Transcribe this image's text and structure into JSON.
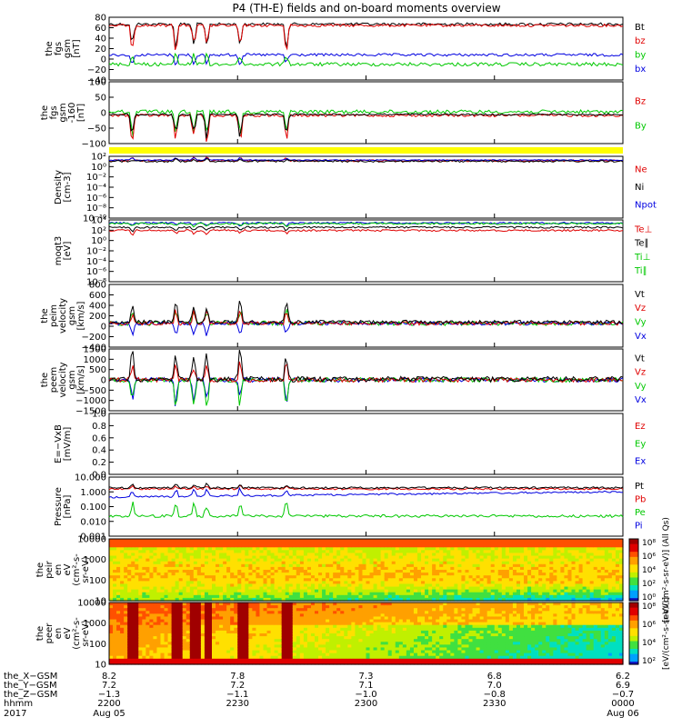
{
  "title": "P4 (TH-E) fields and on-board moments overview",
  "colors": {
    "black": "#000000",
    "red": "#e00000",
    "green": "#00c800",
    "blue": "#0000e0",
    "yellow": "#ffff00"
  },
  "panels": [
    {
      "id": "fgs",
      "ylabel": [
        "the",
        "fgs",
        "gsm",
        "[nT]"
      ],
      "ticks": [
        "80",
        "60",
        "40",
        "20",
        "0",
        "−20",
        "−40"
      ],
      "legend": [
        {
          "t": "Bt",
          "c": "black"
        },
        {
          "t": "bz",
          "c": "red"
        },
        {
          "t": "by",
          "c": "green"
        },
        {
          "t": "bx",
          "c": "blue"
        }
      ]
    },
    {
      "id": "fgs2",
      "ylabel": [
        "the",
        "fgs",
        "gsm",
        "-160",
        "[nT]"
      ],
      "ticks": [
        "100",
        "50",
        "0",
        "−50",
        "−100"
      ],
      "legend": [
        {
          "t": "Bz",
          "c": "red"
        },
        {
          "t": "By",
          "c": "green"
        }
      ]
    },
    {
      "id": "density",
      "ylabel": [
        "Density",
        "[cm-3]"
      ],
      "ticks": [
        "10²",
        "10⁰",
        "10⁻²",
        "10⁻⁴",
        "10⁻⁶",
        "10⁻⁸",
        "10⁻¹⁰"
      ],
      "legend": [
        {
          "t": "Ne",
          "c": "red"
        },
        {
          "t": "Ni",
          "c": "black"
        },
        {
          "t": "Npot",
          "c": "blue"
        }
      ]
    },
    {
      "id": "temp",
      "ylabel": [
        "moqt3",
        "[eV]"
      ],
      "ticks": [
        "10⁴",
        "10²",
        "10⁰",
        "10⁻²",
        "10⁻⁴",
        "10⁻⁶",
        "10⁻⁸"
      ],
      "legend": [
        {
          "t": "Te⊥",
          "c": "red"
        },
        {
          "t": "Te∥",
          "c": "black"
        },
        {
          "t": "Ti⊥",
          "c": "green"
        },
        {
          "t": "Ti∥",
          "c": "green"
        }
      ]
    },
    {
      "id": "peim",
      "ylabel": [
        "the",
        "peim",
        "velocity",
        "gsm",
        "[km/s]"
      ],
      "ticks": [
        "800",
        "600",
        "400",
        "200",
        "0",
        "−200",
        "−400"
      ],
      "legend": [
        {
          "t": "Vt",
          "c": "black"
        },
        {
          "t": "Vz",
          "c": "red"
        },
        {
          "t": "Vy",
          "c": "green"
        },
        {
          "t": "Vx",
          "c": "blue"
        }
      ]
    },
    {
      "id": "peem",
      "ylabel": [
        "the",
        "peem",
        "velocity",
        "gsm",
        "[km/s]"
      ],
      "ticks": [
        "1500",
        "1000",
        "500",
        "0",
        "−500",
        "−1000",
        "−1500"
      ],
      "legend": [
        {
          "t": "Vt",
          "c": "black"
        },
        {
          "t": "Vz",
          "c": "red"
        },
        {
          "t": "Vy",
          "c": "green"
        },
        {
          "t": "Vx",
          "c": "blue"
        }
      ]
    },
    {
      "id": "efield",
      "ylabel": [
        "E=−VxB",
        "[mV/m]"
      ],
      "ticks": [
        "1.0",
        "0.8",
        "0.6",
        "0.4",
        "0.2",
        "0.0"
      ],
      "legend": [
        {
          "t": "Ez",
          "c": "red"
        },
        {
          "t": "Ey",
          "c": "green"
        },
        {
          "t": "Ex",
          "c": "blue"
        }
      ]
    },
    {
      "id": "pressure",
      "ylabel": [
        "Pressure",
        "[nPa]"
      ],
      "ticks": [
        "10.000",
        "1.000",
        "0.100",
        "0.010",
        "0.001"
      ],
      "legend": [
        {
          "t": "Pt",
          "c": "black"
        },
        {
          "t": "Pb",
          "c": "red"
        },
        {
          "t": "Pe",
          "c": "green"
        },
        {
          "t": "Pi",
          "c": "blue"
        }
      ]
    },
    {
      "id": "peir",
      "ylabel": [
        "the",
        "peir",
        "en",
        "eV",
        "(cm²-s-",
        "sr-eV)"
      ],
      "ticks": [
        "10000",
        "1000",
        "100",
        "10"
      ],
      "cbar_ticks": [
        "10⁸",
        "10⁶",
        "10⁴",
        "10²",
        "10⁰"
      ],
      "cbar_label": "[eV/(cm²-s-sr-eV)] (All Qs)"
    },
    {
      "id": "peer",
      "ylabel": [
        "the",
        "peer",
        "en",
        "eV",
        "(cm²-s-",
        "sr-eV)"
      ],
      "ticks": [
        "10000",
        "1000",
        "100",
        "10"
      ],
      "cbar_ticks": [
        "10⁸",
        "10⁶",
        "10⁴",
        "10²"
      ],
      "cbar_label": "[eV/(cm²-s-sr-eV)]"
    }
  ],
  "xaxis": {
    "rows": [
      "the_X−GSM",
      "the_Y−GSM",
      "the_Z−GSM",
      "hhmm",
      "2017"
    ],
    "ticks": [
      {
        "x": "8.2",
        "y": "7.2",
        "z": "−1.3",
        "t": "2200",
        "d": "Aug 05"
      },
      {
        "x": "7.8",
        "y": "7.2",
        "z": "−1.1",
        "t": "2230",
        "d": ""
      },
      {
        "x": "7.3",
        "y": "7.1",
        "z": "−1.0",
        "t": "2300",
        "d": ""
      },
      {
        "x": "6.8",
        "y": "7.0",
        "z": "−0.8",
        "t": "2330",
        "d": ""
      },
      {
        "x": "6.2",
        "y": "6.9",
        "z": "−0.7",
        "t": "0000",
        "d": "Aug 06"
      }
    ]
  },
  "chart_data": [
    {
      "type": "line",
      "title": "P4 (TH-E) fields and on-board moments overview",
      "ylabel": "the fgs gsm [nT]",
      "ylim": [
        -40,
        80
      ],
      "x": [
        "2200",
        "2230",
        "2300",
        "2330",
        "0000"
      ],
      "series": [
        {
          "name": "Bt",
          "values": [
            60,
            58,
            62,
            63,
            58
          ]
        },
        {
          "name": "bz",
          "values": [
            58,
            56,
            60,
            61,
            55
          ]
        },
        {
          "name": "by",
          "values": [
            8,
            5,
            2,
            1,
            -3
          ]
        },
        {
          "name": "bx",
          "values": [
            -15,
            -12,
            -10,
            -8,
            -10
          ]
        }
      ]
    },
    {
      "type": "line",
      "ylabel": "the fgs gsm -160 [nT]",
      "ylim": [
        -120,
        100
      ],
      "x": [
        "2200",
        "2230",
        "2300",
        "2330",
        "0000"
      ],
      "series": [
        {
          "name": "Bz",
          "values": [
            0,
            -2,
            0,
            0,
            0
          ]
        },
        {
          "name": "By",
          "values": [
            0,
            0,
            -2,
            0,
            -3
          ]
        }
      ]
    },
    {
      "type": "line",
      "ylabel": "Density [cm-3]",
      "log": true,
      "ylim": [
        1e-10,
        100
      ],
      "x": [
        "2200",
        "2230",
        "2300",
        "2330",
        "0000"
      ],
      "series": [
        {
          "name": "Ne",
          "values": [
            0.3,
            0.4,
            0.5,
            1,
            2
          ]
        },
        {
          "name": "Ni",
          "values": [
            0.3,
            0.4,
            0.5,
            2,
            10
          ]
        },
        {
          "name": "Npot",
          "values": [
            0.5,
            0.6,
            1,
            1.5,
            2
          ]
        }
      ]
    },
    {
      "type": "line",
      "ylabel": "moqt3 [eV]",
      "log": true,
      "ylim": [
        1e-08,
        10000
      ],
      "x": [
        "2200",
        "2230",
        "2300",
        "2330",
        "0000"
      ],
      "series": [
        {
          "name": "Te⊥",
          "values": [
            300,
            400,
            500,
            500,
            200
          ]
        },
        {
          "name": "Te∥",
          "values": [
            500,
            600,
            700,
            700,
            300
          ]
        },
        {
          "name": "Ti⊥",
          "values": [
            2000,
            2500,
            3000,
            3000,
            2000
          ]
        },
        {
          "name": "Ti∥",
          "values": [
            3000,
            3000,
            3500,
            3500,
            2500
          ]
        }
      ]
    },
    {
      "type": "line",
      "ylabel": "the peim velocity gsm [km/s]",
      "ylim": [
        -400,
        800
      ],
      "x": [
        "2200",
        "2230",
        "2300",
        "2330",
        "0000"
      ],
      "series": [
        {
          "name": "Vt",
          "values": [
            50,
            200,
            50,
            30,
            30
          ]
        },
        {
          "name": "Vz",
          "values": [
            0,
            50,
            0,
            0,
            0
          ]
        },
        {
          "name": "Vy",
          "values": [
            0,
            -50,
            0,
            0,
            0
          ]
        },
        {
          "name": "Vx",
          "values": [
            0,
            -30,
            0,
            0,
            0
          ]
        }
      ]
    },
    {
      "type": "line",
      "ylabel": "the peem velocity gsm [km/s]",
      "ylim": [
        -1500,
        1500
      ],
      "x": [
        "2200",
        "2230",
        "2300",
        "2330",
        "0000"
      ],
      "series": [
        {
          "name": "Vt",
          "values": [
            200,
            400,
            100,
            100,
            300
          ]
        },
        {
          "name": "Vz",
          "values": [
            0,
            0,
            0,
            0,
            0
          ]
        },
        {
          "name": "Vy",
          "values": [
            0,
            -200,
            0,
            0,
            -100
          ]
        },
        {
          "name": "Vx",
          "values": [
            0,
            -100,
            0,
            0,
            -100
          ]
        }
      ]
    },
    {
      "type": "line",
      "ylabel": "E=−VxB [mV/m]",
      "ylim": [
        0,
        1
      ],
      "x": [],
      "series": []
    },
    {
      "type": "line",
      "ylabel": "Pressure [nPa]",
      "log": true,
      "ylim": [
        0.001,
        10
      ],
      "x": [
        "2200",
        "2230",
        "2300",
        "2330",
        "0000"
      ],
      "series": [
        {
          "name": "Pt",
          "values": [
            1.3,
            1.3,
            1.4,
            1.5,
            1.4
          ]
        },
        {
          "name": "Pb",
          "values": [
            1.2,
            1.2,
            1.3,
            1.4,
            1.2
          ]
        },
        {
          "name": "Pe",
          "values": [
            0.012,
            0.015,
            0.02,
            0.025,
            0.03
          ]
        },
        {
          "name": "Pi",
          "values": [
            0.12,
            0.14,
            0.18,
            0.22,
            0.25
          ]
        }
      ]
    },
    {
      "type": "heatmap",
      "ylabel": "the peir en eV (cm²-s-sr-eV)",
      "log": true,
      "ylim": [
        5,
        30000
      ],
      "colorbar": [
        1,
        100000000.0
      ]
    },
    {
      "type": "heatmap",
      "ylabel": "the peer en eV (cm²-s-sr-eV)",
      "log": true,
      "ylim": [
        5,
        30000
      ],
      "colorbar": [
        1,
        100000000.0
      ]
    }
  ]
}
